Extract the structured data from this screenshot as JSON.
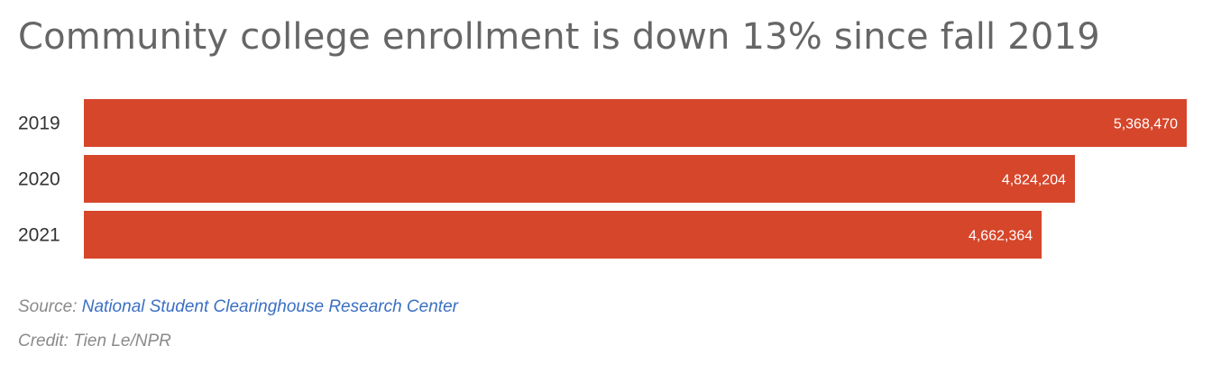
{
  "colors": {
    "bar": "#d6462b",
    "link": "#3b6fc4"
  },
  "chart_data": {
    "type": "bar",
    "orientation": "horizontal",
    "title": "Community college enrollment is down 13% since fall 2019",
    "categories": [
      "2019",
      "2020",
      "2021"
    ],
    "values": [
      5368470,
      4824204,
      4662364
    ],
    "value_labels": [
      "5,368,470",
      "4,824,204",
      "4,662,364"
    ],
    "xlim": [
      0,
      5368470
    ],
    "grid": false,
    "legend": "none"
  },
  "footer": {
    "source_prefix": "Source: ",
    "source_link": "National Student Clearinghouse Research Center",
    "credit": "Credit: Tien Le/NPR"
  }
}
